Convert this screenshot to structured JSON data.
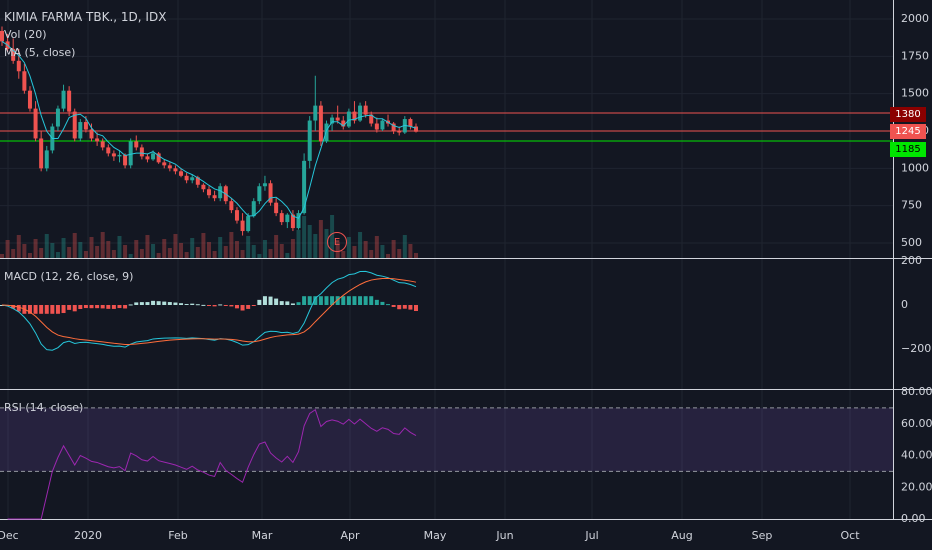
{
  "chart_data": [
    {
      "type": "candlestick",
      "title": "KIMIA FARMA TBK., 1D, IDX",
      "indicators": [
        "Vol (20)",
        "MA (5, close)"
      ],
      "ylim": [
        400,
        2050
      ],
      "y_ticks": [
        500,
        750,
        1000,
        1250,
        1500,
        1750,
        2000
      ],
      "x_ticks": [
        "Dec",
        "2020",
        "Feb",
        "Mar",
        "Apr",
        "May",
        "Jun",
        "Jul",
        "Aug",
        "Sep",
        "Oct"
      ],
      "price_lines": [
        {
          "value": "1380",
          "color": "#ef5350",
          "bg": "#8b0000"
        },
        {
          "value": "1245",
          "color": "#ef5350",
          "bg": "#ef5350"
        },
        {
          "value": "1185",
          "color": "#00e600",
          "bg": "#00e600"
        }
      ],
      "event_marker": "E",
      "candles": [
        [
          1920,
          1950,
          1820,
          1850
        ],
        [
          1850,
          1900,
          1780,
          1800
        ],
        [
          1800,
          1870,
          1700,
          1720
        ],
        [
          1720,
          1800,
          1600,
          1650
        ],
        [
          1650,
          1700,
          1500,
          1520
        ],
        [
          1520,
          1550,
          1380,
          1400
        ],
        [
          1400,
          1450,
          1180,
          1200
        ],
        [
          1200,
          1250,
          980,
          1000
        ],
        [
          1000,
          1150,
          980,
          1120
        ],
        [
          1120,
          1300,
          1100,
          1280
        ],
        [
          1280,
          1420,
          1250,
          1400
        ],
        [
          1400,
          1560,
          1380,
          1520
        ],
        [
          1520,
          1550,
          1350,
          1380
        ],
        [
          1380,
          1400,
          1180,
          1200
        ],
        [
          1200,
          1330,
          1180,
          1310
        ],
        [
          1310,
          1350,
          1240,
          1260
        ],
        [
          1260,
          1300,
          1180,
          1200
        ],
        [
          1200,
          1240,
          1150,
          1180
        ],
        [
          1180,
          1200,
          1120,
          1140
        ],
        [
          1140,
          1160,
          1080,
          1100
        ],
        [
          1100,
          1120,
          1050,
          1080
        ],
        [
          1080,
          1120,
          1040,
          1090
        ],
        [
          1090,
          1100,
          1000,
          1020
        ],
        [
          1020,
          1200,
          1000,
          1180
        ],
        [
          1180,
          1220,
          1120,
          1140
        ],
        [
          1140,
          1160,
          1060,
          1080
        ],
        [
          1080,
          1100,
          1040,
          1060
        ],
        [
          1060,
          1120,
          1050,
          1100
        ],
        [
          1100,
          1110,
          1030,
          1040
        ],
        [
          1040,
          1060,
          1000,
          1020
        ],
        [
          1020,
          1040,
          980,
          1000
        ],
        [
          1000,
          1020,
          960,
          980
        ],
        [
          980,
          1000,
          940,
          950
        ],
        [
          950,
          970,
          900,
          920
        ],
        [
          920,
          960,
          900,
          940
        ],
        [
          940,
          950,
          870,
          890
        ],
        [
          890,
          900,
          840,
          860
        ],
        [
          860,
          880,
          800,
          820
        ],
        [
          820,
          850,
          780,
          800
        ],
        [
          800,
          900,
          780,
          880
        ],
        [
          880,
          890,
          760,
          780
        ],
        [
          780,
          800,
          700,
          720
        ],
        [
          720,
          740,
          630,
          650
        ],
        [
          650,
          700,
          550,
          580
        ],
        [
          580,
          700,
          570,
          680
        ],
        [
          680,
          800,
          670,
          780
        ],
        [
          780,
          900,
          760,
          880
        ],
        [
          880,
          950,
          850,
          900
        ],
        [
          900,
          920,
          750,
          770
        ],
        [
          770,
          800,
          680,
          700
        ],
        [
          700,
          720,
          620,
          640
        ],
        [
          640,
          700,
          600,
          690
        ],
        [
          690,
          720,
          580,
          600
        ],
        [
          600,
          720,
          590,
          700
        ],
        [
          700,
          1100,
          690,
          1050
        ],
        [
          1050,
          1350,
          1000,
          1320
        ],
        [
          1320,
          1620,
          1250,
          1420
        ],
        [
          1420,
          1450,
          1150,
          1180
        ],
        [
          1180,
          1320,
          1170,
          1300
        ],
        [
          1300,
          1360,
          1250,
          1340
        ],
        [
          1340,
          1420,
          1300,
          1320
        ],
        [
          1320,
          1350,
          1260,
          1280
        ],
        [
          1280,
          1400,
          1270,
          1380
        ],
        [
          1380,
          1450,
          1300,
          1320
        ],
        [
          1320,
          1440,
          1310,
          1420
        ],
        [
          1420,
          1450,
          1340,
          1360
        ],
        [
          1360,
          1380,
          1280,
          1300
        ],
        [
          1300,
          1340,
          1240,
          1260
        ],
        [
          1260,
          1330,
          1250,
          1320
        ],
        [
          1320,
          1360,
          1280,
          1300
        ],
        [
          1300,
          1310,
          1230,
          1250
        ],
        [
          1250,
          1280,
          1220,
          1240
        ],
        [
          1240,
          1350,
          1230,
          1330
        ],
        [
          1330,
          1340,
          1260,
          1280
        ],
        [
          1280,
          1300,
          1240,
          1245
        ]
      ]
    },
    {
      "type": "macd",
      "title": "MACD (12, 26, close, 9)",
      "y_ticks": [
        "200",
        "0",
        "−200"
      ],
      "ylim": [
        -260,
        210
      ]
    },
    {
      "type": "rsi",
      "title": "RSI (14, close)",
      "y_ticks": [
        "80.00",
        "60.00",
        "40.00",
        "20.00",
        "0.00"
      ],
      "ylim": [
        0,
        80
      ],
      "bands": [
        30,
        70
      ]
    }
  ],
  "colors": {
    "up": "#26a69a",
    "down": "#ef5350",
    "bg": "#131722",
    "grid": "#1f2430",
    "ma": "#26c6da",
    "signal": "#ff6d3b",
    "rsi": "#9c27b0"
  }
}
